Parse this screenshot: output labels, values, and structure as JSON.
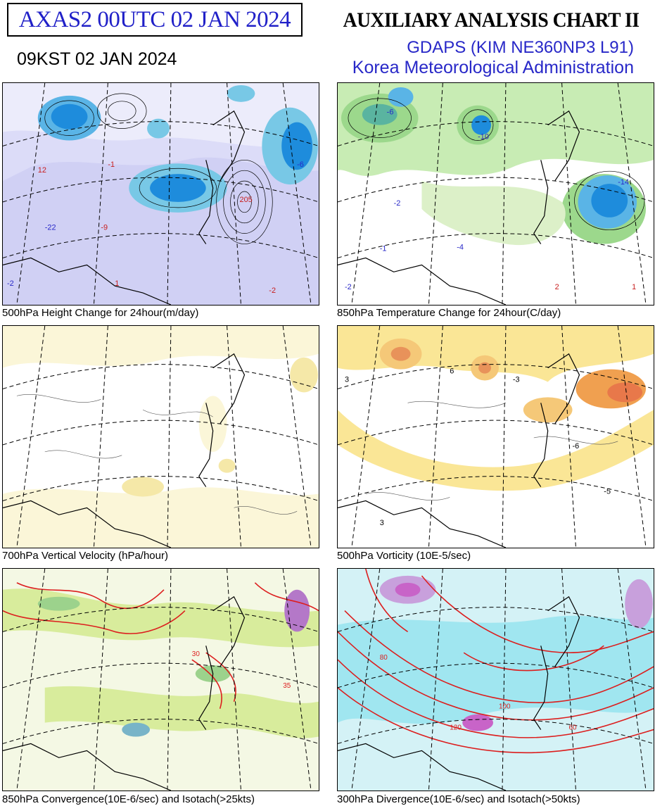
{
  "header": {
    "id_box": "AXAS2  00UTC 02 JAN 2024",
    "valid_time": "09KST 02 JAN 2024",
    "chart_title": "AUXILIARY ANALYSIS CHART II",
    "model": "GDAPS (KIM NE360NP3 L91)",
    "agency": "Korea Meteorological Administration"
  },
  "panels": [
    {
      "caption": "500hPa Height Change for 24hour(m/day)",
      "labels": [
        "205",
        "-2",
        "-22",
        "12",
        "-1",
        "-9",
        "1",
        "-6",
        "-2"
      ]
    },
    {
      "caption": "850hPa Temperature Change for 24hour(C/day)",
      "labels": [
        "-14",
        "-10",
        "-2",
        "-1",
        "-4",
        "1",
        "2",
        "-6",
        "-2"
      ]
    },
    {
      "caption": "700hPa Vertical Velocity (hPa/hour)",
      "labels": []
    },
    {
      "caption": "500hPa Vorticity (10E-5/sec)",
      "labels": [
        "3",
        "6",
        "-3",
        "-6",
        "-5",
        "3"
      ]
    },
    {
      "caption": "850hPa Convergence(10E-6/sec) and Isotach(>25kts)",
      "labels": [
        "30",
        "35"
      ]
    },
    {
      "caption": "300hPa Divergence(10E-6/sec) and Isotach(>50kts)",
      "labels": [
        "80",
        "60",
        "100",
        "120"
      ]
    }
  ],
  "colors": {
    "title_blue": "#2020c8",
    "height_fall_light": "#dcdcf8",
    "height_fall_dark": "#1e8cdc",
    "temp_green": "#b4e6a0",
    "vort_yellow": "#fae696",
    "vort_orange": "#f0a050",
    "isotach_red": "#dc1e1e",
    "div_cyan": "#a0e6f0",
    "div_magenta": "#c864c8"
  }
}
